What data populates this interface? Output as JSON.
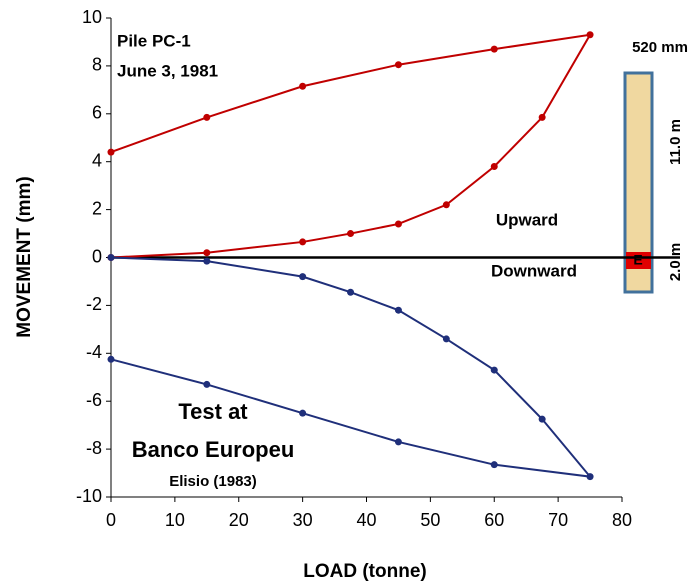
{
  "chart_data": {
    "type": "line",
    "x_label": "LOAD  (tonne)",
    "y_label": "MOVEMENT  (mm)",
    "xlim": [
      0,
      80
    ],
    "xticks": [
      0,
      10,
      20,
      30,
      40,
      50,
      60,
      70,
      80
    ],
    "ylim": [
      -10,
      10
    ],
    "yticks": [
      -10,
      -8,
      -6,
      -4,
      -2,
      0,
      2,
      4,
      6,
      8,
      10
    ],
    "series": [
      {
        "name": "Upward",
        "color": "#c00000",
        "x": [
          0,
          15,
          30,
          37.5,
          45,
          52.5,
          60,
          67.5,
          75,
          60,
          45,
          30,
          15,
          0
        ],
        "values": [
          0,
          0.2,
          0.65,
          1.0,
          1.4,
          2.2,
          3.8,
          5.85,
          9.3,
          8.7,
          8.05,
          7.15,
          5.85,
          4.4
        ]
      },
      {
        "name": "Downward",
        "color": "#1f2f7a",
        "x": [
          0,
          15,
          30,
          37.5,
          45,
          52.5,
          60,
          67.5,
          75,
          60,
          45,
          30,
          15,
          0
        ],
        "values": [
          0,
          -0.15,
          -0.8,
          -1.45,
          -2.2,
          -3.4,
          -4.7,
          -6.75,
          -9.15,
          -8.65,
          -7.7,
          -6.5,
          -5.3,
          -4.25
        ]
      }
    ],
    "annotations": [
      "Pile PC-1",
      "June 3, 1981",
      "Test at",
      "Banco Europeu",
      "Elisio (1983)",
      "520 mm",
      "11.0 m",
      "2.0 m",
      "E"
    ]
  }
}
